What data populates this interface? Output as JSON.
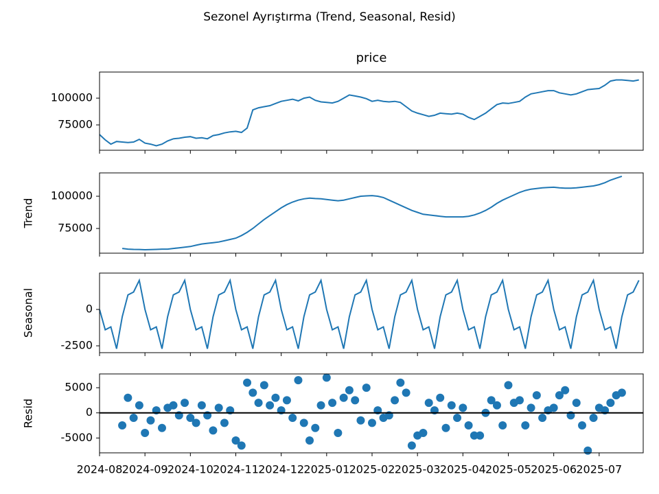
{
  "title": "Sezonel Ayrıştırma (Trend, Seasonal, Resid)",
  "x": [
    0,
    0.125,
    0.25,
    0.375,
    0.5,
    0.625,
    0.75,
    0.875,
    1,
    1.125,
    1.25,
    1.375,
    1.5,
    1.625,
    1.75,
    1.875,
    2,
    2.125,
    2.25,
    2.375,
    2.5,
    2.625,
    2.75,
    2.875,
    3,
    3.125,
    3.25,
    3.375,
    3.5,
    3.625,
    3.75,
    3.875,
    4,
    4.125,
    4.25,
    4.375,
    4.5,
    4.625,
    4.75,
    4.875,
    5,
    5.125,
    5.25,
    5.375,
    5.5,
    5.625,
    5.75,
    5.875,
    6,
    6.125,
    6.25,
    6.375,
    6.5,
    6.625,
    6.75,
    6.875,
    7,
    7.125,
    7.25,
    7.375,
    7.5,
    7.625,
    7.75,
    7.875,
    8,
    8.125,
    8.25,
    8.375,
    8.5,
    8.625,
    8.75,
    8.875,
    9,
    9.125,
    9.25,
    9.375,
    9.5,
    9.625,
    9.75,
    9.875,
    10,
    10.125,
    10.25,
    10.375,
    10.5,
    10.625,
    10.75,
    10.875,
    11,
    11.125,
    11.25,
    11.375,
    11.5,
    11.625,
    11.75,
    11.875
  ],
  "xlim": [
    0,
    11.97
  ],
  "xticks": [
    {
      "value": 0,
      "label": "2024-08"
    },
    {
      "value": 1,
      "label": "2024-09"
    },
    {
      "value": 2,
      "label": "2024-10"
    },
    {
      "value": 3,
      "label": "2024-11"
    },
    {
      "value": 4,
      "label": "2024-12"
    },
    {
      "value": 5,
      "label": "2025-01"
    },
    {
      "value": 6,
      "label": "2025-02"
    },
    {
      "value": 7,
      "label": "2025-03"
    },
    {
      "value": 8,
      "label": "2025-04"
    },
    {
      "value": 9,
      "label": "2025-05"
    },
    {
      "value": 10,
      "label": "2025-06"
    },
    {
      "value": 11,
      "label": "2025-07"
    }
  ],
  "chart_data": [
    {
      "type": "line",
      "title": "price",
      "color": "#1f77b4",
      "ylim": [
        51300,
        124400
      ],
      "yticks": [
        75000,
        100000
      ],
      "values": [
        66000,
        61000,
        57000,
        59500,
        59000,
        58500,
        59000,
        61500,
        58000,
        57000,
        55500,
        57000,
        60000,
        62000,
        62500,
        63500,
        64000,
        62500,
        63000,
        62000,
        65000,
        66000,
        67500,
        68500,
        69000,
        68000,
        72000,
        89000,
        91000,
        92000,
        93000,
        95000,
        97000,
        98000,
        99000,
        97500,
        100000,
        101000,
        98000,
        96500,
        96000,
        95500,
        97000,
        100000,
        103000,
        102000,
        101000,
        99500,
        97000,
        98000,
        97000,
        96500,
        97000,
        96000,
        92000,
        88000,
        86000,
        84500,
        83000,
        84000,
        86000,
        85500,
        85000,
        86000,
        85000,
        82000,
        80000,
        83000,
        86000,
        90000,
        94000,
        95500,
        95000,
        96000,
        97000,
        101000,
        104000,
        105000,
        106000,
        107000,
        107000,
        105000,
        104000,
        103000,
        104000,
        106000,
        108000,
        108500,
        109000,
        112000,
        116000,
        117000,
        117000,
        116500,
        116000,
        117000
      ]
    },
    {
      "type": "line",
      "ylabel": "Trend",
      "color": "#1f77b4",
      "ylim": [
        55850,
        118100
      ],
      "yticks": [
        75000,
        100000
      ],
      "values": [
        null,
        null,
        null,
        null,
        59500,
        59000,
        58800,
        58700,
        58500,
        58600,
        58800,
        59000,
        59000,
        59500,
        60000,
        60500,
        61000,
        62000,
        63000,
        63500,
        64000,
        64500,
        65500,
        66500,
        67500,
        69500,
        72000,
        75000,
        78500,
        82000,
        85000,
        88000,
        91000,
        93500,
        95500,
        97000,
        98000,
        98500,
        98200,
        98000,
        97500,
        97000,
        96500,
        97000,
        98000,
        99000,
        100000,
        100300,
        100500,
        100000,
        99000,
        97000,
        95000,
        93000,
        91000,
        89000,
        87500,
        86000,
        85500,
        85000,
        84500,
        84000,
        84000,
        84000,
        84000,
        84500,
        85500,
        87000,
        89000,
        91500,
        94500,
        97000,
        99000,
        101000,
        103000,
        104500,
        105500,
        106000,
        106500,
        106800,
        107000,
        106500,
        106300,
        106300,
        106500,
        107000,
        107500,
        108000,
        109000,
        110500,
        112500,
        114000,
        115500,
        null,
        null,
        null
      ]
    },
    {
      "type": "line",
      "ylabel": "Seasonal",
      "color": "#1f77b4",
      "ylim": [
        -2970,
        2500
      ],
      "yticks": [
        -2500,
        0
      ],
      "values": [
        0,
        -1400,
        -1200,
        -2700,
        -500,
        1000,
        1200,
        2000,
        0,
        -1400,
        -1200,
        -2700,
        -500,
        1000,
        1200,
        2000,
        0,
        -1400,
        -1200,
        -2700,
        -500,
        1000,
        1200,
        2000,
        0,
        -1400,
        -1200,
        -2700,
        -500,
        1000,
        1200,
        2000,
        0,
        -1400,
        -1200,
        -2700,
        -500,
        1000,
        1200,
        2000,
        0,
        -1400,
        -1200,
        -2700,
        -500,
        1000,
        1200,
        2000,
        0,
        -1400,
        -1200,
        -2700,
        -500,
        1000,
        1200,
        2000,
        0,
        -1400,
        -1200,
        -2700,
        -500,
        1000,
        1200,
        2000,
        0,
        -1400,
        -1200,
        -2700,
        -500,
        1000,
        1200,
        2000,
        0,
        -1400,
        -1200,
        -2700,
        -500,
        1000,
        1200,
        2000,
        0,
        -1400,
        -1200,
        -2700,
        -500,
        1000,
        1200,
        2000,
        0,
        -1400,
        -1200,
        -2700,
        -500,
        1000,
        1200,
        2000
      ]
    },
    {
      "type": "scatter",
      "ylabel": "Resid",
      "color": "#1f77b4",
      "ylim": [
        -7950,
        7740
      ],
      "yticks": [
        -5000,
        0,
        5000
      ],
      "hline": 0,
      "values": [
        null,
        null,
        null,
        null,
        -2500,
        3000,
        -1000,
        1500,
        -4000,
        -1500,
        500,
        -3000,
        1000,
        1500,
        -500,
        2000,
        -1000,
        -2000,
        1500,
        -500,
        -3500,
        1000,
        -2000,
        500,
        -5500,
        -6500,
        6000,
        4000,
        2000,
        5500,
        1500,
        3000,
        500,
        2500,
        -1000,
        6500,
        -2000,
        -5500,
        -3000,
        1500,
        7000,
        2000,
        -4000,
        3000,
        4500,
        2500,
        -1500,
        5000,
        -2000,
        500,
        -1000,
        -500,
        2500,
        6000,
        4000,
        -6500,
        -4500,
        -4000,
        2000,
        500,
        3000,
        -3000,
        1500,
        -1000,
        1000,
        -2500,
        -4500,
        -4500,
        0,
        2500,
        1500,
        -2500,
        5500,
        2000,
        2500,
        -2500,
        1000,
        3500,
        -1000,
        500,
        1000,
        3500,
        4500,
        -500,
        2000,
        -2500,
        -7500,
        -1000,
        1000,
        500,
        2000,
        3500,
        4000,
        null,
        null,
        null
      ]
    }
  ]
}
